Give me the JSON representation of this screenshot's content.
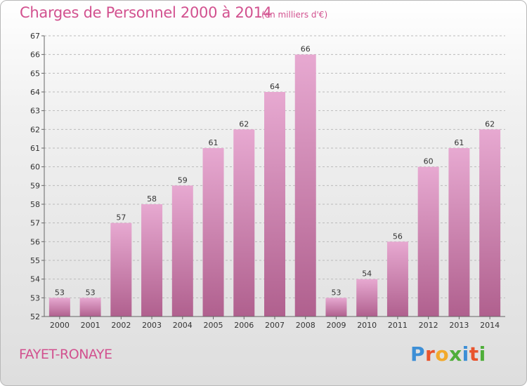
{
  "header": {
    "title": "Charges de Personnel 2000 à 2014",
    "subtitle": "(en milliers d'€)"
  },
  "footer": {
    "place": "FAYET-RONAYE",
    "logo": "Proxiti"
  },
  "colors": {
    "bar_top": "#e7a9d1",
    "bar_bottom": "#b0608e",
    "accent": "#d2518f",
    "grid": "#bbbbbb"
  },
  "chart_data": {
    "type": "bar",
    "categories": [
      "2000",
      "2001",
      "2002",
      "2003",
      "2004",
      "2005",
      "2006",
      "2007",
      "2008",
      "2009",
      "2010",
      "2011",
      "2012",
      "2013",
      "2014"
    ],
    "values": [
      53,
      53,
      57,
      58,
      59,
      61,
      62,
      64,
      66,
      53,
      54,
      56,
      60,
      61,
      62
    ],
    "title": "Charges de Personnel 2000 à 2014",
    "ylim": [
      52,
      67
    ],
    "yticks": [
      52,
      53,
      54,
      55,
      56,
      57,
      58,
      59,
      60,
      61,
      62,
      63,
      64,
      65,
      66,
      67
    ],
    "grid": true
  }
}
